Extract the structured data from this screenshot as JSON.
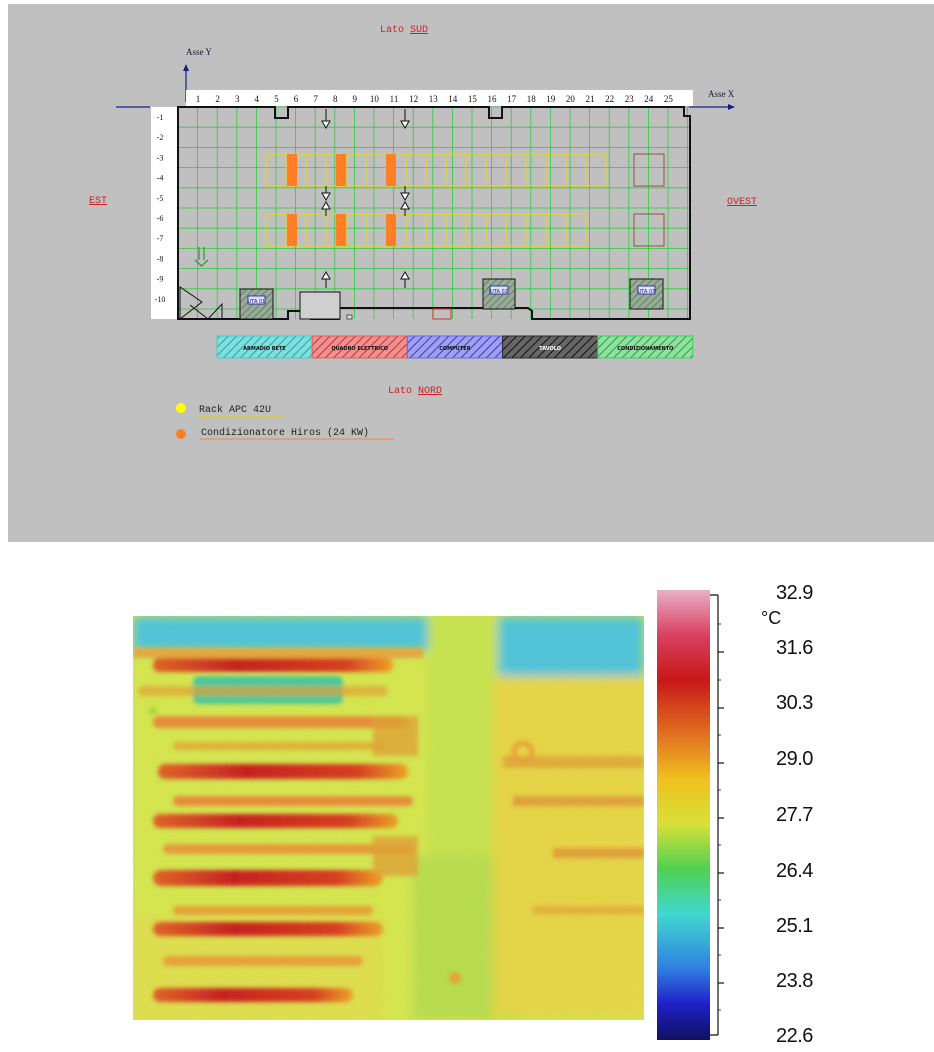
{
  "plan": {
    "south_prefix": "Lato ",
    "south": "SUD",
    "north_prefix": "Lato ",
    "north": "NORD",
    "east": "EST",
    "west": "OVEST",
    "axis_y": "Asse Y",
    "axis_x": "Asse X",
    "x_ticks": [
      "1",
      "2",
      "3",
      "4",
      "5",
      "6",
      "7",
      "8",
      "9",
      "10",
      "11",
      "12",
      "13",
      "14",
      "15",
      "16",
      "17",
      "18",
      "19",
      "20",
      "21",
      "22",
      "23",
      "24",
      "25"
    ],
    "y_ticks": [
      "-1",
      "-2",
      "-3",
      "-4",
      "-5",
      "-6",
      "-7",
      "-8",
      "-9",
      "-10"
    ],
    "units": [
      "UTA 01",
      "UTA 02",
      "UTA 03"
    ],
    "legend_boxes": [
      {
        "label": "ARMADIO RETE",
        "color": "#4fc9c9"
      },
      {
        "label": "QUADRO ELETTRICO",
        "color": "#e06060"
      },
      {
        "label": "COMPUTER",
        "color": "#6a6ae0"
      },
      {
        "label": "TAVOLO",
        "color": "#2a2a2a"
      },
      {
        "label": "CONDIZIONAMENTO",
        "color": "#3fcf5f"
      }
    ],
    "legend_items": [
      {
        "label": "Rack APC 42U",
        "color": "#ffff00"
      },
      {
        "label": "Condizionatore Hiros (24 KW)",
        "color": "#ff7f27"
      }
    ]
  },
  "thermal": {
    "unit": "°C",
    "scale_labels": [
      "32.9",
      "31.6",
      "30.3",
      "29.0",
      "27.7",
      "26.4",
      "25.1",
      "23.8",
      "22.6"
    ],
    "scale_min": 22.6,
    "scale_max": 32.9
  }
}
